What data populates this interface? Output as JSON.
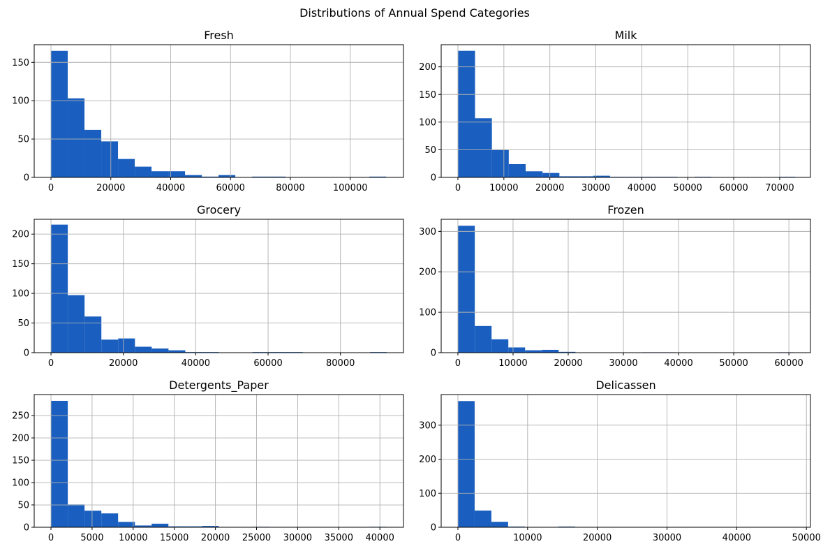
{
  "figure": {
    "title": "Distributions of Annual Spend Categories",
    "bar_color": "#1a5fbf",
    "grid_color": "#b0b0b0"
  },
  "chart_data": [
    {
      "type": "bar",
      "title": "Fresh",
      "bins": 20,
      "xlim": [
        -5600,
        117800
      ],
      "ylim": [
        0,
        173
      ],
      "xticks": [
        0,
        20000,
        40000,
        60000,
        80000,
        100000
      ],
      "xtick_labels": [
        "0",
        "20000",
        "40000",
        "60000",
        "80000",
        "100000"
      ],
      "yticks": [
        0,
        50,
        100,
        150
      ],
      "ytick_labels": [
        "0",
        "50",
        "100",
        "150"
      ],
      "bin_start": 3,
      "bin_width": 5600,
      "counts": [
        165,
        103,
        62,
        47,
        24,
        14,
        8,
        8,
        3,
        1,
        3,
        0,
        1,
        1,
        0,
        0,
        0,
        0,
        0,
        1
      ],
      "grid": true
    },
    {
      "type": "bar",
      "title": "Milk",
      "bins": 20,
      "xlim": [
        -3640,
        76690
      ],
      "ylim": [
        0,
        240
      ],
      "xticks": [
        0,
        10000,
        20000,
        30000,
        40000,
        50000,
        60000,
        70000
      ],
      "xtick_labels": [
        "0",
        "10000",
        "20000",
        "30000",
        "40000",
        "50000",
        "60000",
        "70000"
      ],
      "yticks": [
        0,
        50,
        100,
        150,
        200
      ],
      "ytick_labels": [
        "0",
        "50",
        "100",
        "150",
        "200"
      ],
      "bin_start": 55,
      "bin_width": 3670,
      "counts": [
        229,
        107,
        50,
        24,
        11,
        8,
        2,
        2,
        3,
        1,
        1,
        1,
        1,
        0,
        1,
        0,
        0,
        0,
        0,
        1
      ],
      "grid": true
    },
    {
      "type": "bar",
      "title": "Grocery",
      "bins": 20,
      "xlim": [
        -4640,
        97420
      ],
      "ylim": [
        0,
        225
      ],
      "xticks": [
        0,
        20000,
        40000,
        60000,
        80000
      ],
      "xtick_labels": [
        "0",
        "20000",
        "40000",
        "60000",
        "80000"
      ],
      "yticks": [
        0,
        50,
        100,
        150,
        200
      ],
      "ytick_labels": [
        "0",
        "50",
        "100",
        "150",
        "200"
      ],
      "bin_start": 3,
      "bin_width": 4640,
      "counts": [
        216,
        97,
        61,
        22,
        24,
        10,
        7,
        4,
        1,
        1,
        0,
        0,
        1,
        1,
        1,
        0,
        0,
        0,
        0,
        1
      ],
      "grid": true
    },
    {
      "type": "bar",
      "title": "Frozen",
      "bins": 20,
      "xlim": [
        -3030,
        63910
      ],
      "ylim": [
        0,
        330
      ],
      "xticks": [
        0,
        10000,
        20000,
        30000,
        40000,
        50000,
        60000
      ],
      "xtick_labels": [
        "0",
        "10000",
        "20000",
        "30000",
        "40000",
        "50000",
        "60000"
      ],
      "yticks": [
        0,
        100,
        200,
        300
      ],
      "ytick_labels": [
        "0",
        "100",
        "200",
        "300"
      ],
      "bin_start": 25,
      "bin_width": 3040,
      "counts": [
        314,
        66,
        33,
        13,
        6,
        7,
        2,
        0,
        0,
        0,
        0,
        1,
        1,
        0,
        0,
        0,
        0,
        0,
        0,
        1
      ],
      "grid": true
    },
    {
      "type": "bar",
      "title": "Detergents_Paper",
      "bins": 20,
      "xlim": [
        -2040,
        42870
      ],
      "ylim": [
        0,
        297
      ],
      "xticks": [
        0,
        5000,
        10000,
        15000,
        20000,
        25000,
        30000,
        35000,
        40000
      ],
      "xtick_labels": [
        "0",
        "5000",
        "10000",
        "15000",
        "20000",
        "25000",
        "30000",
        "35000",
        "40000"
      ],
      "yticks": [
        0,
        50,
        100,
        150,
        200,
        250
      ],
      "ytick_labels": [
        "0",
        "50",
        "100",
        "150",
        "200",
        "250"
      ],
      "bin_start": 3,
      "bin_width": 2040,
      "counts": [
        283,
        51,
        37,
        31,
        12,
        4,
        8,
        2,
        2,
        3,
        0,
        0,
        1,
        0,
        0,
        0,
        0,
        0,
        0,
        1
      ],
      "grid": true
    },
    {
      "type": "bar",
      "title": "Delicassen",
      "bins": 20,
      "xlim": [
        -2400,
        50580
      ],
      "ylim": [
        0,
        390
      ],
      "xticks": [
        0,
        10000,
        20000,
        30000,
        40000,
        50000
      ],
      "xtick_labels": [
        "0",
        "10000",
        "20000",
        "30000",
        "40000",
        "50000"
      ],
      "yticks": [
        0,
        100,
        200,
        300
      ],
      "ytick_labels": [
        "0",
        "100",
        "200",
        "300"
      ],
      "bin_start": 3,
      "bin_width": 2400,
      "counts": [
        371,
        49,
        16,
        2,
        0,
        0,
        2,
        0,
        0,
        0,
        0,
        0,
        0,
        0,
        0,
        0,
        0,
        0,
        0,
        1
      ],
      "grid": true
    }
  ]
}
